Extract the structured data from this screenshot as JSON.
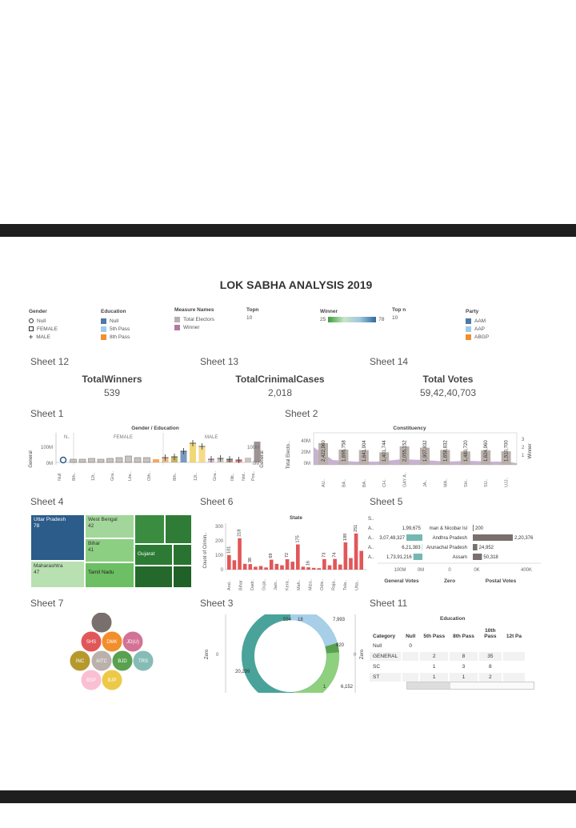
{
  "dashboard_title": "LOK SABHA ANALYSIS 2019",
  "legends": {
    "gender": {
      "title": "Gender",
      "items": [
        "Null",
        "FEMALE",
        "MALE"
      ]
    },
    "education": {
      "title": "Education",
      "items": [
        {
          "label": "Null",
          "color": "#4e79a7"
        },
        {
          "label": "5th Pass",
          "color": "#a0cbe8"
        },
        {
          "label": "8th Pass",
          "color": "#f28e2b"
        }
      ]
    },
    "measure_names": {
      "title": "Measure Names",
      "items": [
        {
          "label": "Total Electors",
          "color": "#bab0ac"
        },
        {
          "label": "Winner",
          "color": "#b07aa1"
        }
      ]
    },
    "topn1": {
      "title": "Topn",
      "value": "10"
    },
    "winner": {
      "title": "Winner",
      "min": "25",
      "max": "78"
    },
    "topn2": {
      "title": "Top n",
      "value": "10"
    },
    "party": {
      "title": "Party",
      "items": [
        {
          "label": "AAM",
          "color": "#4e79a7"
        },
        {
          "label": "AAP",
          "color": "#a0cbe8"
        },
        {
          "label": "ABGP",
          "color": "#f28e2b"
        }
      ]
    }
  },
  "sheets": {
    "s12": "Sheet 12",
    "s13": "Sheet 13",
    "s14": "Sheet 14",
    "s1": "Sheet 1",
    "s2": "Sheet 2",
    "s4": "Sheet 4",
    "s6": "Sheet 6",
    "s5": "Sheet 5",
    "s7": "Sheet 7",
    "s3": "Sheet 3",
    "s11": "Sheet 11"
  },
  "kpis": [
    {
      "label": "TotalWinners",
      "value": "539"
    },
    {
      "label": "TotalCrinimalCases",
      "value": "2,018"
    },
    {
      "label": "Total Votes",
      "value": "59,42,40,703"
    }
  ],
  "chart_data": [
    {
      "id": "sheet1",
      "type": "bar",
      "title": "Gender / Education",
      "groups": [
        "N..",
        "FEMALE",
        "MALE"
      ],
      "ylabel": "General",
      "ylabel_right": "General",
      "yticks": [
        "100M",
        "0M"
      ],
      "xticks": [
        "Null",
        "8th..",
        "12t..",
        "Gra..",
        "Lite..",
        "Oth..",
        "8th..",
        "12t..",
        "Gra..",
        "Illit..",
        "Not..",
        "Pos.."
      ]
    },
    {
      "id": "sheet2",
      "type": "bar",
      "title": "Constituency",
      "ylabel": "Total Electo..",
      "ylabel_right": "Winner",
      "yticks": [
        "40M",
        "20M",
        "0M"
      ],
      "winner_ticks": [
        "3",
        "2",
        "1"
      ],
      "values": [
        "2,422,960",
        "1,695,758",
        "1,641,904",
        "1,401,744",
        "2,055,152",
        "1,907,832",
        "1,658,832",
        "1,489,720",
        "1,624,960",
        "1,510,700"
      ],
      "xticks": [
        "AU..",
        "BA..",
        "BA..",
        "CH..",
        "GAY A..",
        "JA..",
        "MA..",
        "SH..",
        "SU..",
        "UJJ.."
      ]
    },
    {
      "id": "sheet4",
      "type": "treemap",
      "cells": [
        {
          "label": "Uttar Pradesh",
          "value": 78
        },
        {
          "label": "West Bengal",
          "value": 42
        },
        {
          "label": "Bihar",
          "value": 41
        },
        {
          "label": "Maharashtra",
          "value": 47
        },
        {
          "label": "Tamil Nadu",
          "value": null
        },
        {
          "label": "Gujarat",
          "value": null
        }
      ]
    },
    {
      "id": "sheet6",
      "type": "bar",
      "title": "State",
      "ylabel": "Count of Crimin..",
      "yticks": [
        "300",
        "200",
        "100",
        "0"
      ],
      "ymax": 300,
      "bars": [
        101,
        65,
        218,
        40,
        38,
        20,
        25,
        15,
        69,
        40,
        30,
        72,
        55,
        175,
        20,
        16,
        12,
        10,
        73,
        30,
        74,
        35,
        189,
        80,
        251,
        130
      ],
      "bar_labels": [
        "101",
        "",
        "218",
        "",
        "38",
        "",
        "",
        "",
        "69",
        "",
        "",
        "72",
        "",
        "175",
        "",
        "16",
        "",
        "",
        "73",
        "",
        "74",
        "",
        "189",
        "",
        "251",
        ""
      ],
      "xticks": [
        "And..",
        "Bihar",
        "Dadr..",
        "Guja..",
        "Jam..",
        "Kera..",
        "Mah..",
        "Mizo..",
        "Odis..",
        "Raja..",
        "Tela..",
        "Utta.."
      ]
    },
    {
      "id": "sheet5",
      "type": "bar",
      "header": "S..",
      "rows": [
        {
          "key": "A..",
          "general": "1,99,675",
          "state": "man & Nicobar Isl",
          "postal": "200"
        },
        {
          "key": "A..",
          "general": "3,07,48,327",
          "state": "Andhra Pradesh",
          "postal": "2,20,376"
        },
        {
          "key": "A..",
          "general": "6,21,383",
          "state": "Arunachal Pradesh",
          "postal": "24,952"
        },
        {
          "key": "A..",
          "general": "1,73,91,216",
          "state": "Assam",
          "postal": "50,318"
        }
      ],
      "axes": {
        "general": [
          "100M",
          "0M"
        ],
        "zero": [
          "0"
        ],
        "postal": [
          "0K",
          "400K"
        ]
      },
      "col_labels": [
        "General Votes",
        "Zero",
        "Postal Votes"
      ]
    },
    {
      "id": "sheet7",
      "type": "bubble",
      "bubbles": [
        {
          "label": "",
          "color": "#79706e"
        },
        {
          "label": "SHS",
          "color": "#e15759"
        },
        {
          "label": "DMK",
          "color": "#f28e2b"
        },
        {
          "label": "JD(U)",
          "color": "#d37295"
        },
        {
          "label": "INC",
          "color": "#b6992d"
        },
        {
          "label": "AITC",
          "color": "#bab0ac"
        },
        {
          "label": "BJD",
          "color": "#59a14f"
        },
        {
          "label": "TRS",
          "color": "#86bcb6"
        },
        {
          "label": "BSP",
          "color": "#fabfd2"
        },
        {
          "label": "BJP",
          "color": "#edc948"
        }
      ]
    },
    {
      "id": "sheet3",
      "type": "pie",
      "ylabel": "Zero",
      "ytick": "0",
      "labels": [
        "554",
        "18",
        "7,993",
        "920",
        "20,299",
        "1",
        "6,152"
      ]
    },
    {
      "id": "sheet11",
      "type": "table",
      "group_header": "Education",
      "columns": [
        "Category",
        "Null",
        "5th Pass",
        "8th Pass",
        "10th Pass",
        "12t Pa"
      ],
      "rows": [
        [
          "Null",
          "0",
          "",
          "",
          ""
        ],
        [
          "GENERAL",
          "",
          "2",
          "8",
          "35"
        ],
        [
          "SC",
          "",
          "1",
          "3",
          "8"
        ],
        [
          "ST",
          "",
          "1",
          "1",
          "2"
        ]
      ]
    }
  ]
}
